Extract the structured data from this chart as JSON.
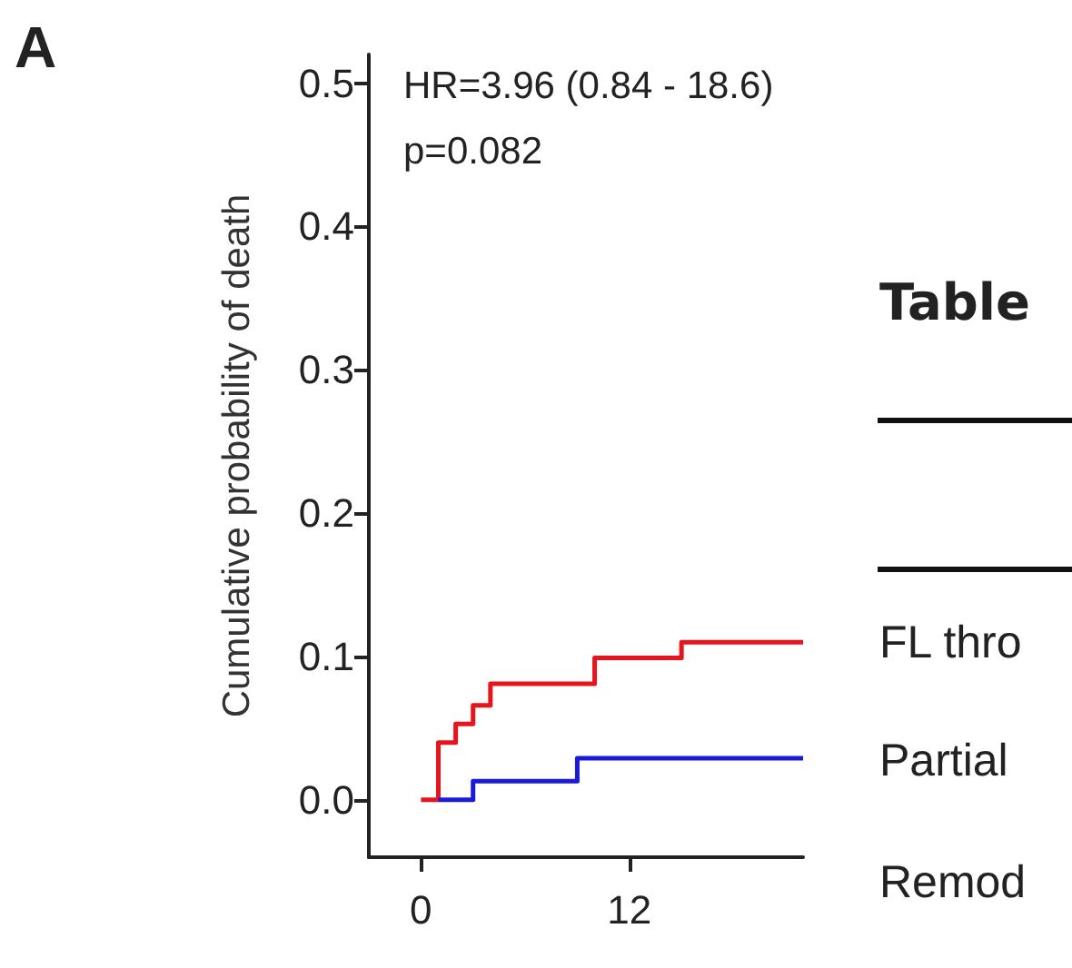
{
  "chart_data": {
    "type": "step",
    "ylabel": "Cumulative probability of death",
    "annotations": [
      "A",
      "HR=3.96  (0.84 - 18.6)",
      "p=0.082",
      "Table",
      "FL thro",
      "Partial",
      "Remod"
    ],
    "xlim": [
      -3,
      22
    ],
    "xticks": [
      0,
      12
    ],
    "ylim": [
      -0.04,
      0.52
    ],
    "yticks": [
      {
        "value": 0,
        "label": "0.0"
      },
      {
        "value": 0.1,
        "label": "0.1"
      },
      {
        "value": 0.2,
        "label": "0.2"
      },
      {
        "value": 0.3,
        "label": "0.3"
      },
      {
        "value": 0.4,
        "label": "0.4"
      },
      {
        "value": 0.5,
        "label": "0.5"
      }
    ],
    "grid": false,
    "marker": "none",
    "line_style": "solid",
    "series": [
      {
        "color": "#e8141c",
        "x": [
          0,
          1,
          2,
          3,
          4,
          10,
          15,
          22
        ],
        "values": [
          0,
          0.04,
          0.053,
          0.066,
          0.081,
          0.099,
          0.11,
          0.11
        ]
      },
      {
        "color": "#1a1adb",
        "x": [
          1,
          3,
          9,
          22
        ],
        "values": [
          0,
          0.013,
          0.029,
          0.029
        ]
      }
    ]
  }
}
